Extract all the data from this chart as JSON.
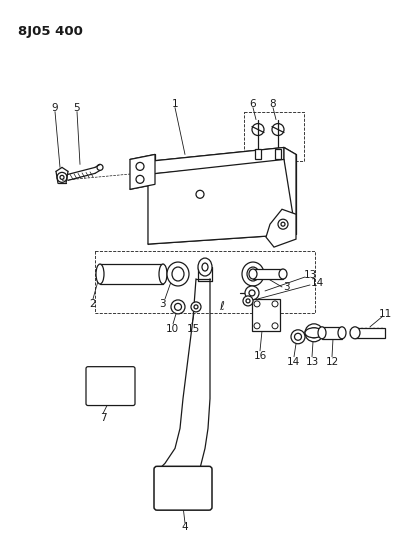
{
  "title": "8J05 400",
  "bg_color": "#ffffff",
  "lc": "#1a1a1a",
  "label_fontsize": 7.5,
  "title_fontsize": 9.5
}
